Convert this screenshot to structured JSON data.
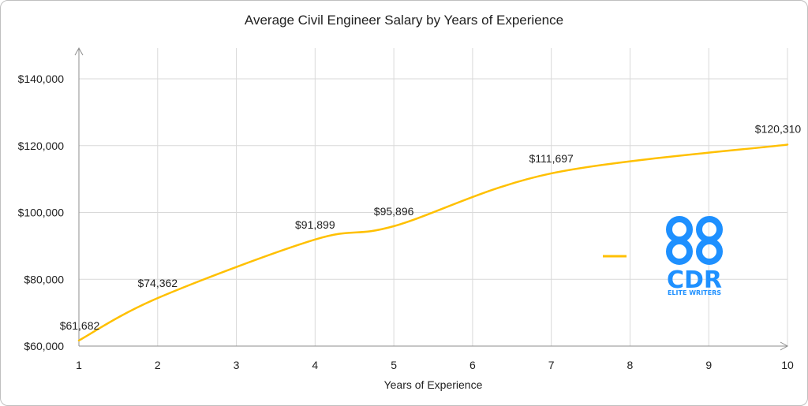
{
  "colors": {
    "series": "#FFC000",
    "logo": "#1E90FF"
  },
  "logo": {
    "name": "cdr-logo",
    "text": "CDR",
    "subtext": "ELITE WRITERS"
  },
  "chart_data": {
    "type": "line",
    "title": "Average Civil Engineer Salary by Years of Experience",
    "xlabel": "Years of Experience",
    "ylabel": "",
    "x": [
      1,
      2,
      3,
      4,
      5,
      6,
      7,
      8,
      9,
      10
    ],
    "xticks": [
      "1",
      "2",
      "3",
      "4",
      "5",
      "6",
      "7",
      "8",
      "9",
      "10"
    ],
    "xlim": [
      1,
      10
    ],
    "ylim": [
      60000,
      150000
    ],
    "yticks": [
      60000,
      80000,
      100000,
      120000,
      140000
    ],
    "ytick_labels": [
      "$60,000",
      "$80,000",
      "$100,000",
      "$120,000",
      "$140,000"
    ],
    "grid": true,
    "legend": "right",
    "series": [
      {
        "name": "",
        "color": "#FFC000",
        "points": [
          {
            "x": 1,
            "y": 61682,
            "label": "$61,682"
          },
          {
            "x": 2,
            "y": 74362,
            "label": "$74,362"
          },
          {
            "x": 4,
            "y": 91899,
            "label": "$91,899"
          },
          {
            "x": 5,
            "y": 95896,
            "label": "$95,896"
          },
          {
            "x": 7,
            "y": 111697,
            "label": "$111,697"
          },
          {
            "x": 10,
            "y": 120310,
            "label": "$120,310"
          }
        ]
      }
    ]
  }
}
